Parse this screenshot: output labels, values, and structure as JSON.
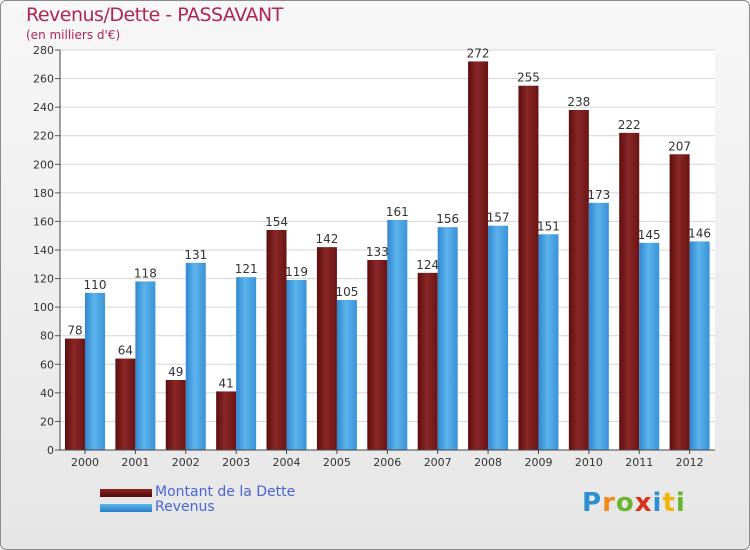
{
  "chart_data": {
    "type": "bar",
    "title": "Revenus/Dette - PASSAVANT",
    "subtitle": "(en milliers d'€)",
    "categories": [
      "2000",
      "2001",
      "2002",
      "2003",
      "2004",
      "2005",
      "2006",
      "2007",
      "2008",
      "2009",
      "2010",
      "2011",
      "2012"
    ],
    "series": [
      {
        "name": "Montant de la Dette",
        "values": [
          78,
          64,
          49,
          41,
          154,
          142,
          133,
          124,
          272,
          255,
          238,
          222,
          207
        ],
        "color": "#7a1c1c"
      },
      {
        "name": "Revenus",
        "values": [
          110,
          118,
          131,
          121,
          119,
          105,
          161,
          156,
          157,
          151,
          173,
          145,
          146
        ],
        "color": "#3d96dc"
      }
    ],
    "ylim": [
      0,
      280
    ],
    "yticks": [
      0,
      20,
      40,
      60,
      80,
      100,
      120,
      140,
      160,
      180,
      200,
      220,
      240,
      260,
      280
    ],
    "grid": true,
    "legend_position": "bottom-left"
  },
  "logo": {
    "letters": [
      "P",
      "r",
      "o",
      "x",
      "i",
      "t",
      "i"
    ]
  }
}
